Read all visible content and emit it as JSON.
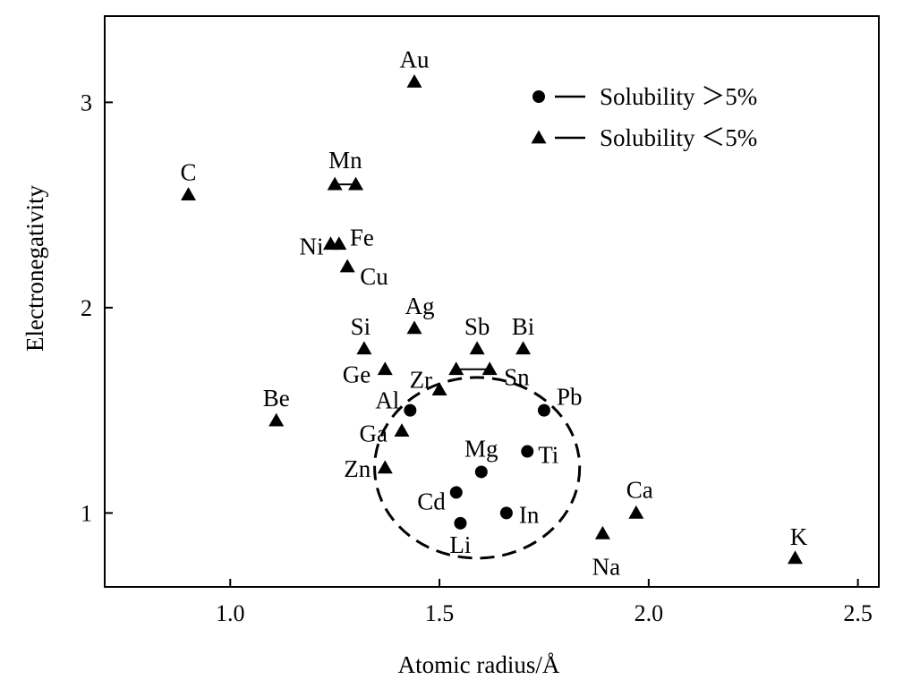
{
  "chart_data": {
    "type": "scatter",
    "title": "",
    "xlabel": "Atomic radius/Å",
    "ylabel": "Electronegativity",
    "xlim": [
      0.7,
      2.55
    ],
    "ylim": [
      0.64,
      3.42
    ],
    "xticks": [
      "1.0",
      "1.5",
      "2.0",
      "2.5"
    ],
    "xtick_values": [
      1.0,
      1.5,
      2.0,
      2.5
    ],
    "yticks": [
      "1",
      "2",
      "3"
    ],
    "ytick_values": [
      1,
      2,
      3
    ],
    "grid": false,
    "legend_position": "top-right",
    "legend": [
      {
        "marker": "circle",
        "label": "Solubility ＞5%"
      },
      {
        "marker": "triangle",
        "label": "Solubility ＜5%"
      }
    ],
    "series": [
      {
        "marker": "circle",
        "points": [
          {
            "label": "Al",
            "x": 1.43,
            "y": 1.5
          },
          {
            "label": "Pb",
            "x": 1.75,
            "y": 1.5
          },
          {
            "label": "Mg",
            "x": 1.6,
            "y": 1.2
          },
          {
            "label": "Ti",
            "x": 1.71,
            "y": 1.3
          },
          {
            "label": "Cd",
            "x": 1.54,
            "y": 1.1
          },
          {
            "label": "In",
            "x": 1.66,
            "y": 1.0
          },
          {
            "label": "Li",
            "x": 1.55,
            "y": 0.95
          }
        ]
      },
      {
        "marker": "triangle",
        "points": [
          {
            "label": "Au",
            "x": 1.44,
            "y": 3.1
          },
          {
            "label": "C",
            "x": 0.9,
            "y": 2.55
          },
          {
            "label": "Mn",
            "x": 1.25,
            "y": 2.6,
            "x2": 1.3
          },
          {
            "label": "Ni",
            "x": 1.24,
            "y": 2.31
          },
          {
            "label": "Fe",
            "x": 1.26,
            "y": 2.31
          },
          {
            "label": "Cu",
            "x": 1.28,
            "y": 2.2
          },
          {
            "label": "Ag",
            "x": 1.44,
            "y": 1.9
          },
          {
            "label": "Si",
            "x": 1.32,
            "y": 1.8
          },
          {
            "label": "Sb",
            "x": 1.59,
            "y": 1.8
          },
          {
            "label": "Bi",
            "x": 1.7,
            "y": 1.8
          },
          {
            "label": "Ge",
            "x": 1.37,
            "y": 1.7
          },
          {
            "label": "Sn",
            "x": 1.62,
            "y": 1.7,
            "x2": 1.54
          },
          {
            "label": "Zr",
            "x": 1.5,
            "y": 1.6
          },
          {
            "label": "Be",
            "x": 1.11,
            "y": 1.45
          },
          {
            "label": "Ga",
            "x": 1.41,
            "y": 1.4
          },
          {
            "label": "Zn",
            "x": 1.37,
            "y": 1.22
          },
          {
            "label": "Ca",
            "x": 1.97,
            "y": 1.0
          },
          {
            "label": "Na",
            "x": 1.89,
            "y": 0.9
          },
          {
            "label": "K",
            "x": 2.35,
            "y": 0.78
          }
        ]
      }
    ],
    "annotations": [
      {
        "type": "dashed-ellipse",
        "cx": 1.59,
        "cy": 1.22,
        "rx": 0.245,
        "ry": 0.44
      }
    ]
  }
}
